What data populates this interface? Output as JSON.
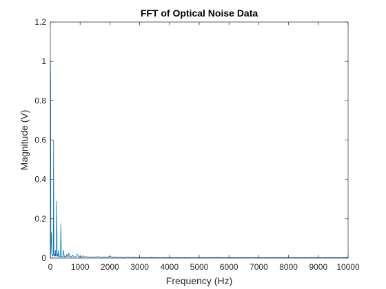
{
  "chart_data": {
    "type": "line",
    "title": "FFT of Optical Noise Data",
    "xlabel": "Frequency (Hz)",
    "ylabel": "Magnitude (V)",
    "xlim": [
      0,
      10000
    ],
    "ylim": [
      0,
      1.2
    ],
    "xticks": [
      0,
      1000,
      2000,
      3000,
      4000,
      5000,
      6000,
      7000,
      8000,
      9000,
      10000
    ],
    "xtick_labels": [
      "0",
      "1000",
      "2000",
      "3000",
      "4000",
      "5000",
      "6000",
      "7000",
      "8000",
      "9000",
      "10000"
    ],
    "yticks": [
      0,
      0.2,
      0.4,
      0.6,
      0.8,
      1,
      1.2
    ],
    "ytick_labels": [
      "0",
      "0.2",
      "0.4",
      "0.6",
      "0.8",
      "1",
      "1.2"
    ],
    "grid": false,
    "box": true,
    "line_color": "#0072BD",
    "series": [
      {
        "x": [
          0,
          10,
          20,
          40,
          60,
          70,
          80,
          100,
          110,
          120,
          140,
          160,
          170,
          180,
          200,
          215,
          230,
          250,
          265,
          280,
          300,
          320,
          340,
          355,
          370,
          390,
          420,
          440,
          470,
          500,
          530,
          560,
          590,
          620,
          650,
          680,
          710,
          750,
          790,
          830,
          870,
          910,
          960,
          1000,
          1050,
          1100,
          1150,
          1200,
          1300,
          1400,
          1500,
          1600,
          1700,
          1800,
          1900,
          2000,
          2100,
          2200,
          2300,
          2400,
          2500,
          2600,
          2700,
          2800,
          2900,
          3000,
          3200,
          3400,
          3600,
          3800,
          4000,
          4200,
          4400,
          4600,
          4800,
          5000,
          5200,
          5400,
          5600,
          5800,
          6000,
          6500,
          7000,
          7500,
          8000,
          8500,
          9000,
          9500,
          10000
        ],
        "y": [
          1.0,
          0.9,
          0.02,
          0.13,
          0.01,
          0.015,
          0.01,
          0.02,
          0.6,
          0.01,
          0.02,
          0.01,
          0.04,
          0.01,
          0.01,
          0.29,
          0.01,
          0.02,
          0.005,
          0.04,
          0.01,
          0.005,
          0.01,
          0.175,
          0.005,
          0.01,
          0.005,
          0.04,
          0.005,
          0.01,
          0.005,
          0.02,
          0.005,
          0.025,
          0.005,
          0.01,
          0.005,
          0.015,
          0.005,
          0.008,
          0.005,
          0.02,
          0.004,
          0.01,
          0.004,
          0.012,
          0.004,
          0.008,
          0.004,
          0.006,
          0.003,
          0.008,
          0.003,
          0.005,
          0.003,
          0.01,
          0.003,
          0.005,
          0.003,
          0.004,
          0.002,
          0.006,
          0.002,
          0.004,
          0.002,
          0.003,
          0.002,
          0.003,
          0.002,
          0.002,
          0.002,
          0.002,
          0.002,
          0.002,
          0.002,
          0.002,
          0.002,
          0.002,
          0.003,
          0.002,
          0.002,
          0.002,
          0.002,
          0.002,
          0.002,
          0.002,
          0.002,
          0.002,
          0.002
        ]
      }
    ]
  }
}
